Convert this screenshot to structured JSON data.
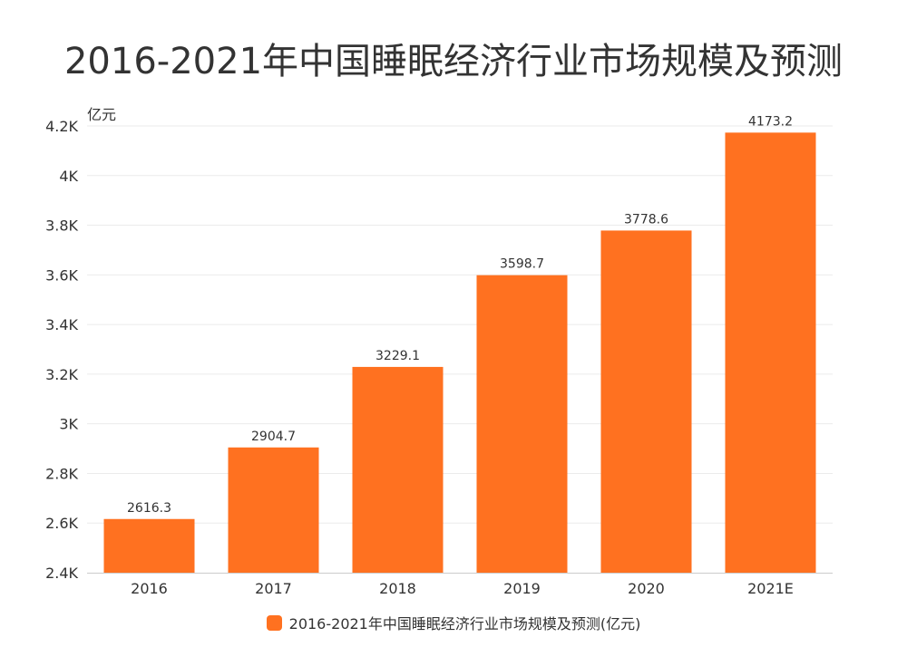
{
  "chart_data": {
    "type": "bar",
    "title": "2016-2021年中国睡眠经济行业市场规模及预测",
    "unit_label": "亿元",
    "categories": [
      "2016",
      "2017",
      "2018",
      "2019",
      "2020",
      "2021E"
    ],
    "series": [
      {
        "name": "2016-2021年中国睡眠经济行业市场规模及预测(亿元)",
        "values": [
          2616.3,
          2904.7,
          3229.1,
          3598.7,
          3778.6,
          4173.2
        ],
        "data_labels": [
          "2616.3",
          "2904.7",
          "3229.1",
          "3598.7",
          "3778.6",
          "4173.2"
        ]
      }
    ],
    "ylim": [
      2400,
      4200
    ],
    "yticks": [
      2400,
      2600,
      2800,
      3000,
      3200,
      3400,
      3600,
      3800,
      4000,
      4200
    ],
    "ytick_labels": [
      "2.4K",
      "2.6K",
      "2.8K",
      "3K",
      "3.2K",
      "3.4K",
      "3.6K",
      "3.8K",
      "4K",
      "4.2K"
    ],
    "grid": true,
    "legend_position": "bottom",
    "bar_color": "#ff7120",
    "grid_color": "#ebebeb",
    "axis_color": "#cccccc"
  }
}
